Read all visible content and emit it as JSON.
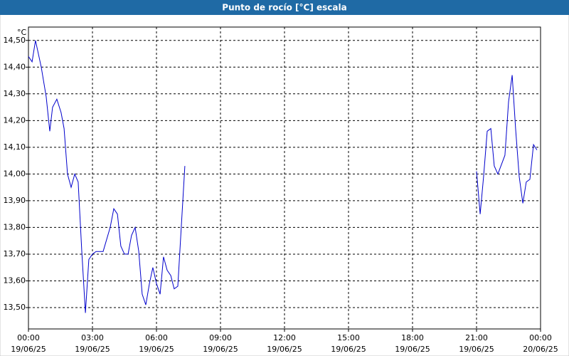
{
  "chart_data": {
    "type": "line",
    "title": "Punto de rocío [°C] escala",
    "y_unit": "°C",
    "x": [
      0,
      0.17,
      0.33,
      0.6,
      0.83,
      1.0,
      1.13,
      1.33,
      1.53,
      1.67,
      1.83,
      2.0,
      2.17,
      2.33,
      2.5,
      2.67,
      2.83,
      3.0,
      3.17,
      3.5,
      3.83,
      4.0,
      4.17,
      4.33,
      4.5,
      4.67,
      4.83,
      5.0,
      5.17,
      5.33,
      5.5,
      5.67,
      5.83,
      6.0,
      6.17,
      6.33,
      6.5,
      6.67,
      6.83,
      7.0,
      7.33,
      14,
      21.0,
      21.17,
      21.33,
      21.5,
      21.67,
      21.83,
      22.0,
      22.33,
      22.5,
      22.67,
      22.83,
      23.0,
      23.17,
      23.33,
      23.5,
      23.67,
      23.83
    ],
    "series": [
      {
        "name": "Punto de rocío",
        "color": "#0000cc",
        "values": [
          14.44,
          14.42,
          14.5,
          14.4,
          14.29,
          14.16,
          14.25,
          14.28,
          14.23,
          14.17,
          14.0,
          13.95,
          14.0,
          13.97,
          13.71,
          13.48,
          13.68,
          13.7,
          13.71,
          13.71,
          13.8,
          13.87,
          13.85,
          13.73,
          13.7,
          13.7,
          13.77,
          13.8,
          13.71,
          13.55,
          13.51,
          13.59,
          13.65,
          13.59,
          13.55,
          13.69,
          13.64,
          13.62,
          13.57,
          13.58,
          14.03,
          null,
          14.01,
          13.85,
          13.99,
          14.16,
          14.17,
          14.03,
          14.0,
          14.07,
          14.27,
          14.37,
          14.17,
          13.99,
          13.89,
          13.97,
          13.98,
          14.11,
          14.09
        ]
      }
    ],
    "xlim": [
      0,
      24
    ],
    "xticks": [
      {
        "value": 0,
        "label": "00:00"
      },
      {
        "value": 3,
        "label": "03:00"
      },
      {
        "value": 6,
        "label": "06:00"
      },
      {
        "value": 9,
        "label": "09:00"
      },
      {
        "value": 12,
        "label": "12:00"
      },
      {
        "value": 15,
        "label": "15:00"
      },
      {
        "value": 18,
        "label": "18:00"
      },
      {
        "value": 21,
        "label": "21:00"
      },
      {
        "value": 24,
        "label": "00:00"
      }
    ],
    "xtick_dates": [
      "19/06/25",
      "19/06/25",
      "19/06/25",
      "19/06/25",
      "19/06/25",
      "19/06/25",
      "19/06/25",
      "19/06/25",
      "20/06/25"
    ],
    "ylim": [
      13.42,
      14.55
    ],
    "yticks": [
      {
        "value": 13.5,
        "label": "13,50"
      },
      {
        "value": 13.6,
        "label": "13,60"
      },
      {
        "value": 13.7,
        "label": "13,70"
      },
      {
        "value": 13.8,
        "label": "13,80"
      },
      {
        "value": 13.9,
        "label": "13,90"
      },
      {
        "value": 14.0,
        "label": "14,00"
      },
      {
        "value": 14.1,
        "label": "14,10"
      },
      {
        "value": 14.2,
        "label": "14,20"
      },
      {
        "value": 14.3,
        "label": "14,30"
      },
      {
        "value": 14.4,
        "label": "14,40"
      },
      {
        "value": 14.5,
        "label": "14,50"
      }
    ],
    "grid": true
  }
}
